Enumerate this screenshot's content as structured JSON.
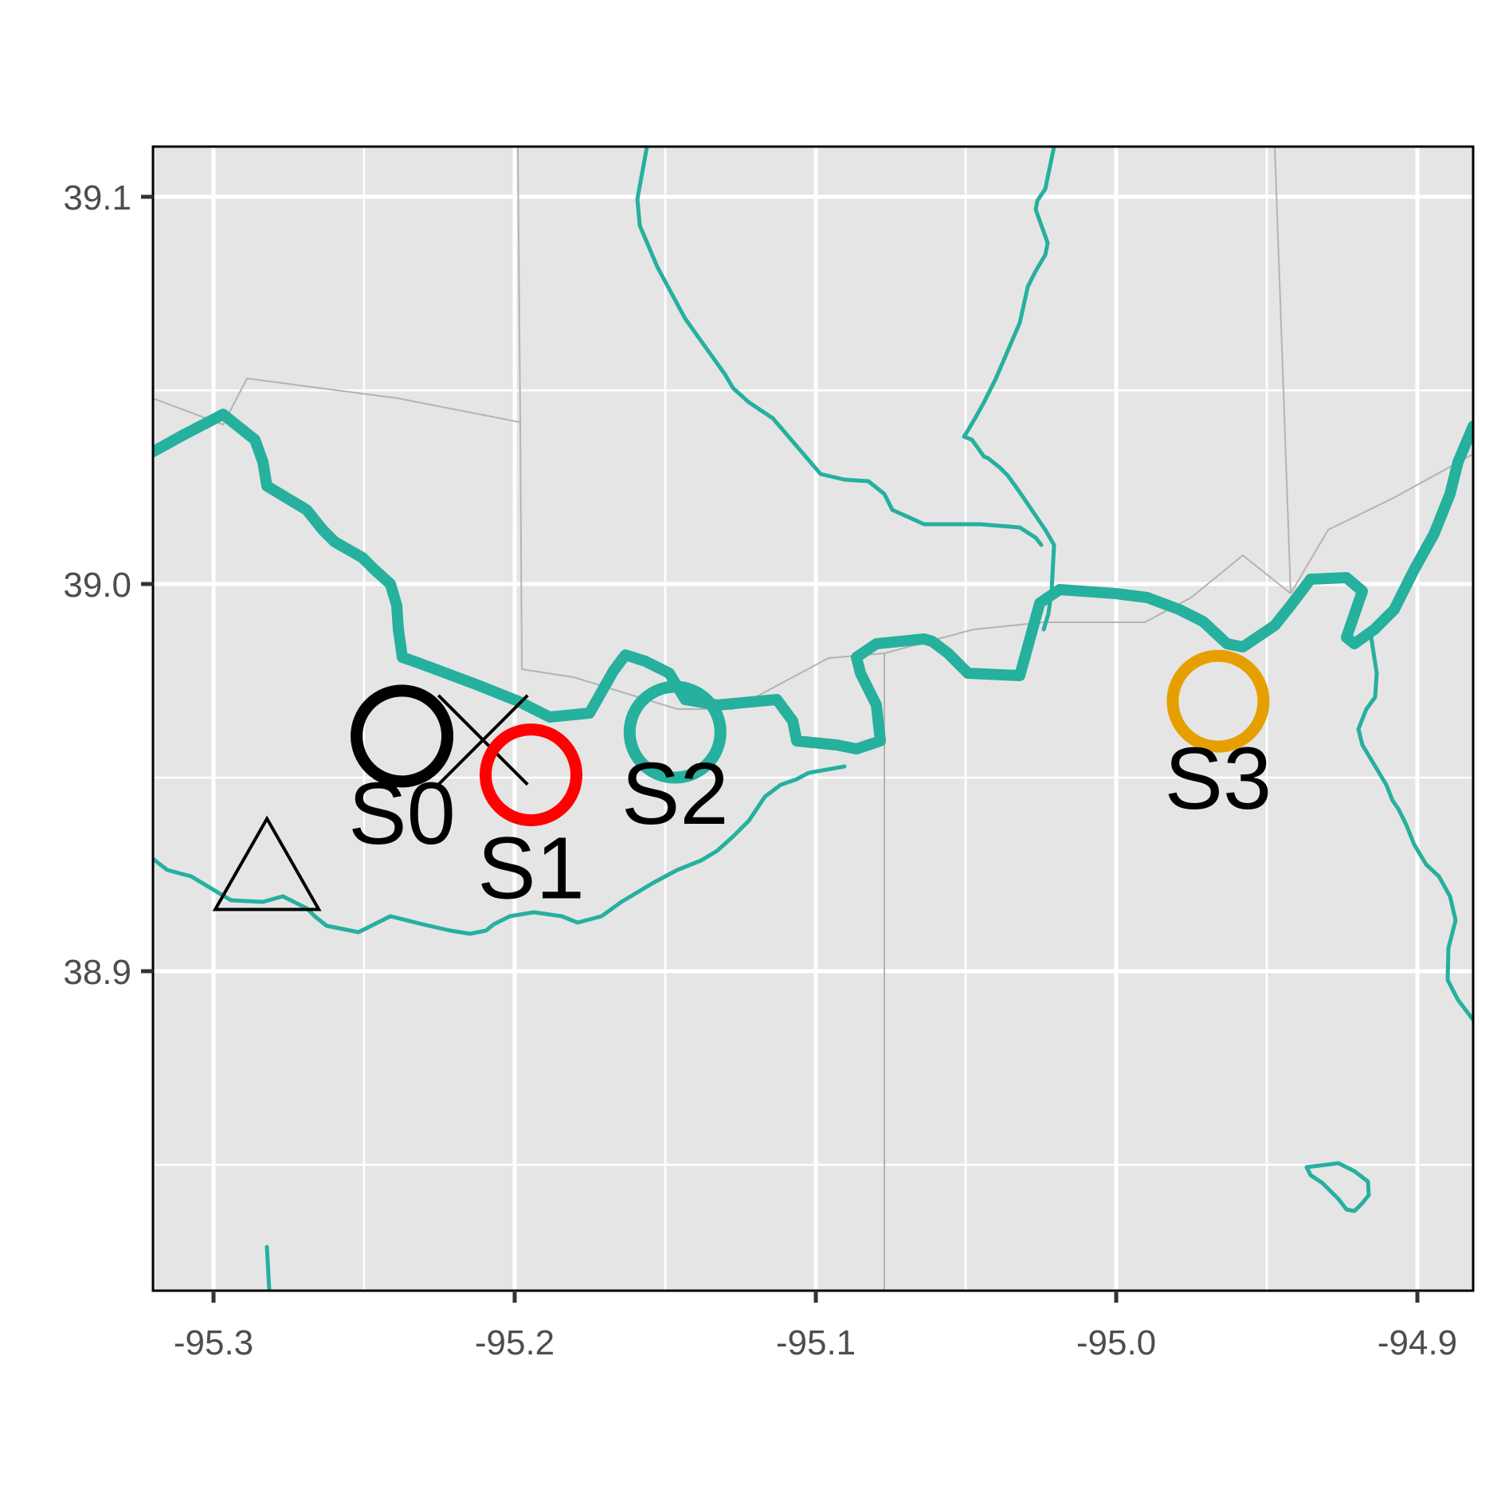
{
  "axes": {
    "x_ticks": [
      "-95.3",
      "-95.2",
      "-95.1",
      "-95.0",
      "-94.9"
    ],
    "y_ticks": [
      "39.1",
      "39.0",
      "38.9"
    ],
    "x_range": [
      -95.32,
      -94.88
    ],
    "y_range": [
      38.83,
      39.125
    ]
  },
  "sites": [
    {
      "label": "S0",
      "lon": -95.237,
      "lat": 38.973,
      "color": "#000000"
    },
    {
      "label": "S1",
      "lon": -95.194,
      "lat": 38.963,
      "color": "#ff0000"
    },
    {
      "label": "S2",
      "lon": -95.146,
      "lat": 38.974,
      "color": "#26b09e"
    },
    {
      "label": "S3",
      "lon": -94.965,
      "lat": 38.982,
      "color": "#e69f00"
    }
  ],
  "markers": [
    {
      "type": "x-mark",
      "lon": -95.21,
      "lat": 38.972
    },
    {
      "type": "triangle",
      "lon": -95.282,
      "lat": 38.94
    }
  ],
  "colors": {
    "panel_bg": "#e5e5e5",
    "grid": "#ffffff",
    "river": "#26b09e",
    "boundary": "#b3b3b3"
  }
}
